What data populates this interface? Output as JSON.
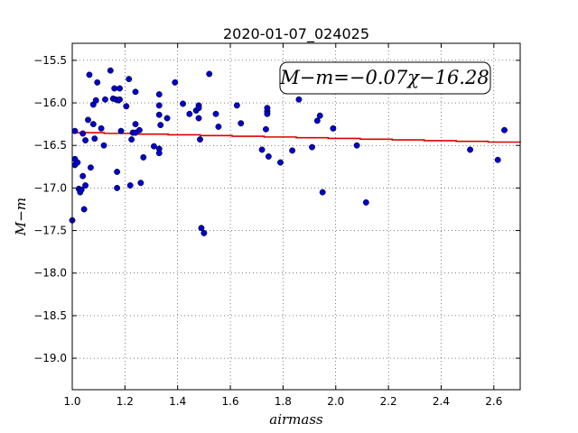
{
  "chart_data": {
    "type": "scatter",
    "title": "2020-01-07_024025",
    "xlabel": "airmass",
    "ylabel": "M−m",
    "xlim": [
      1.0,
      2.7
    ],
    "ylim": [
      -15.3,
      -19.37
    ],
    "y_inverted": true,
    "grid": true,
    "x_ticks": [
      "1.0",
      "1.2",
      "1.4",
      "1.6",
      "1.8",
      "2.0",
      "2.2",
      "2.4",
      "2.6"
    ],
    "y_ticks": [
      "−15.5",
      "−16.0",
      "−16.5",
      "−17.0",
      "−17.5",
      "−18.0",
      "−18.5",
      "−19.0"
    ],
    "annotation": "M−m=−0.07χ−16.28",
    "marker_color": "#0000cc",
    "fit_color": "#dd0000",
    "fit": {
      "slope": -0.07,
      "intercept": -16.28
    },
    "points": [
      [
        1.0,
        -17.38
      ],
      [
        1.01,
        -16.33
      ],
      [
        1.01,
        -16.73
      ],
      [
        1.01,
        -16.66
      ],
      [
        1.02,
        -16.7
      ],
      [
        1.025,
        -17.01
      ],
      [
        1.03,
        -17.05
      ],
      [
        1.035,
        -17.02
      ],
      [
        1.04,
        -16.86
      ],
      [
        1.04,
        -16.36
      ],
      [
        1.045,
        -17.25
      ],
      [
        1.05,
        -16.97
      ],
      [
        1.05,
        -16.44
      ],
      [
        1.06,
        -16.2
      ],
      [
        1.065,
        -15.67
      ],
      [
        1.07,
        -16.76
      ],
      [
        1.08,
        -16.02
      ],
      [
        1.08,
        -16.25
      ],
      [
        1.085,
        -16.42
      ],
      [
        1.09,
        -15.97
      ],
      [
        1.095,
        -15.76
      ],
      [
        1.11,
        -16.3
      ],
      [
        1.12,
        -16.5
      ],
      [
        1.125,
        -15.96
      ],
      [
        1.145,
        -15.62
      ],
      [
        1.155,
        -15.95
      ],
      [
        1.16,
        -15.83
      ],
      [
        1.165,
        -15.96
      ],
      [
        1.17,
        -16.81
      ],
      [
        1.17,
        -17.0
      ],
      [
        1.175,
        -15.97
      ],
      [
        1.18,
        -15.83
      ],
      [
        1.18,
        -15.96
      ],
      [
        1.185,
        -16.33
      ],
      [
        1.205,
        -16.04
      ],
      [
        1.215,
        -15.72
      ],
      [
        1.22,
        -16.97
      ],
      [
        1.225,
        -16.43
      ],
      [
        1.23,
        -16.35
      ],
      [
        1.24,
        -15.87
      ],
      [
        1.24,
        -16.25
      ],
      [
        1.24,
        -16.35
      ],
      [
        1.255,
        -16.32
      ],
      [
        1.26,
        -16.94
      ],
      [
        1.27,
        -16.64
      ],
      [
        1.31,
        -16.51
      ],
      [
        1.33,
        -16.54
      ],
      [
        1.33,
        -16.59
      ],
      [
        1.33,
        -15.9
      ],
      [
        1.33,
        -16.03
      ],
      [
        1.33,
        -16.14
      ],
      [
        1.335,
        -16.26
      ],
      [
        1.36,
        -16.18
      ],
      [
        1.39,
        -15.76
      ],
      [
        1.42,
        -16.01
      ],
      [
        1.445,
        -16.13
      ],
      [
        1.47,
        -16.09
      ],
      [
        1.48,
        -16.03
      ],
      [
        1.48,
        -16.06
      ],
      [
        1.48,
        -16.18
      ],
      [
        1.485,
        -16.43
      ],
      [
        1.49,
        -17.47
      ],
      [
        1.5,
        -17.53
      ],
      [
        1.52,
        -15.66
      ],
      [
        1.545,
        -16.13
      ],
      [
        1.555,
        -16.28
      ],
      [
        1.625,
        -16.03
      ],
      [
        1.64,
        -16.24
      ],
      [
        1.72,
        -16.55
      ],
      [
        1.735,
        -16.31
      ],
      [
        1.74,
        -16.1
      ],
      [
        1.74,
        -16.06
      ],
      [
        1.74,
        -16.13
      ],
      [
        1.745,
        -16.63
      ],
      [
        1.79,
        -16.7
      ],
      [
        1.835,
        -16.56
      ],
      [
        1.86,
        -15.96
      ],
      [
        1.91,
        -16.52
      ],
      [
        1.93,
        -16.21
      ],
      [
        1.94,
        -16.15
      ],
      [
        1.95,
        -17.05
      ],
      [
        1.99,
        -16.3
      ],
      [
        2.08,
        -16.5
      ],
      [
        2.115,
        -17.17
      ],
      [
        2.51,
        -16.55
      ],
      [
        2.615,
        -16.67
      ],
      [
        2.64,
        -16.32
      ]
    ]
  }
}
